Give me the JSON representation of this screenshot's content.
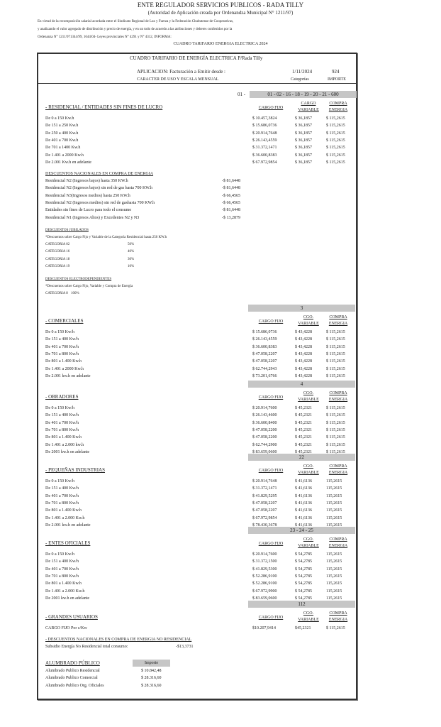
{
  "header": {
    "title": "ENTE REGULADOR SERVICIOS PUBLICOS - RADA TILLY",
    "subtitle": "(Autoridad de Aplicación creada por Ordenandza Municipal N° 1211/97)",
    "intro_lines": [
      "En virtud de la recomposición salarial acordada entre el Sindicato Regional de Luz y Fuerza y la Federación Chubutense de Cooperativas,",
      "y analizando el valor agregado de distribución y precio de energía, y en un todo de acuerdo a las atribuciones y deberes confenidos por la",
      "Ordenanza N° 1211/971344/99, 1644/04- Leyes provinciales N° 4291 y N° 4312, INFORMA:"
    ],
    "doc_title": "CUADRO TARIFARIO ENERGIA ELECTRICA 2024"
  },
  "table_head": {
    "title": "CUADRO TARIFARIO DE ENERGÍA ELECTRICA P/Rada Tilly",
    "aplicacion": "APLICACION:  Facturación  a  Emitir desde :",
    "fecha": "1/11/2024",
    "importe_code": "924",
    "caracter": "CARACTER DE USO Y ESCALA MENSUAL",
    "categorias": "Categorías",
    "importe": "IMPORTE",
    "prefix": "01 -"
  },
  "sections": [
    {
      "band": "01 - 02 - 16 - 18 - 19 - 20 - 21 - 600",
      "heading": "  - RESIDENCIAL / ENTIDADES SIN FINES DE LUCRO",
      "cols": [
        "CARGO FIJO",
        "CARGO",
        "VARIABLE",
        "COMPRA",
        "ENERGIA"
      ],
      "rows": [
        [
          "De 0 a 150 Kw.h",
          "$ 10.457,3824",
          "$ 36,1857",
          "$ 115,2615"
        ],
        [
          "De 151 a 250 Kw.h",
          "$ 15.686,0736",
          "$ 36,1857",
          "$ 115,2615"
        ],
        [
          "De 250 a 400 Kw.h",
          "$ 20.914,7648",
          "$ 36,1857",
          "$ 115,2615"
        ],
        [
          "De 401 a 700 Kw.h",
          "$ 26.143,4559",
          "$ 36,1857",
          "$ 115,2615"
        ],
        [
          "De 701 a 1400 Kw.h",
          "$ 31.372,1471",
          "$ 36,1857",
          "$ 115,2615"
        ],
        [
          "De 1.401 a 2000 Kw.h",
          "$ 36.600,8383",
          "$ 36,1857",
          "$ 115,2615"
        ],
        [
          "De 2.001 Kw.h   en adelante",
          "$ 67.972,9854",
          "$ 36,1857",
          "$ 115,2615"
        ]
      ]
    },
    {
      "band": "3",
      "heading": "  - COMERCIALES",
      "cols": [
        "CARGO FIJO",
        "CGO.",
        "VARIABLE",
        "COMPRA",
        "ENERGIA"
      ],
      "rows": [
        [
          "De 0 a 150 Kw/h",
          "$ 15.686,0736",
          "$ 43,4228",
          "$ 115,2615"
        ],
        [
          "De 151 a 400 Kw/h",
          "$ 26.143,4559",
          "$ 43,4228",
          "$ 115,2615"
        ],
        [
          "De 401 a 700 Kw/h",
          "$ 36.600,8383",
          "$ 43,4228",
          "$ 115,2615"
        ],
        [
          "De 701 a 800 Kw/h",
          "$ 47.058,2207",
          "$ 43,4228",
          "$ 115,2615"
        ],
        [
          "De 801 a 1.400 Kw.h",
          "$ 47.058,2207",
          "$ 43,4228",
          "$ 115,2615"
        ],
        [
          "De 1.401 a 2000 Kw.h",
          "$ 62.744,2943",
          "$ 43,4228",
          "$ 115,2615"
        ],
        [
          "De 2.001 kw.h en adelante",
          "$ 73.201,6766",
          "$ 43,4228",
          "$ 115,2615"
        ]
      ]
    },
    {
      "band": "4",
      "heading": "  - OBRADORES",
      "cols": [
        "CARGO FIJO",
        "CGO.",
        "VARIABLE",
        "COMPRA",
        "ENERGIA"
      ],
      "rows": [
        [
          "De 0 a 150 Kw/h",
          "$ 20.914,7600",
          "$ 45,2321",
          "$ 115,2615"
        ],
        [
          "De 151 a 400 Kw/h",
          "$ 26.143,4600",
          "$ 45,2321",
          "$ 115,2615"
        ],
        [
          "De 401 a 700 Kw/h",
          "$ 36.600,8400",
          "$ 45,2321",
          "$ 115,2615"
        ],
        [
          "De 701 a 800 Kw/h",
          "$ 47.058,2200",
          "$ 45,2321",
          "$ 115,2615"
        ],
        [
          "De 801 a 1.400 Kw.h",
          "$ 47.058,2200",
          "$ 45,2321",
          "$ 115,2615"
        ],
        [
          "De 1.401 a 2.000 kw.h",
          "$ 62.744,2900",
          "$ 45,2321",
          "$ 115,2615"
        ],
        [
          "De 2001 kw.h en adelante",
          "$ 83.659,0600",
          "$ 45,2321",
          "$ 115,2615"
        ]
      ]
    },
    {
      "band": "22",
      "heading": "  - PEQUEÑAS INDUSTRIAS",
      "cols": [
        "CARGO FIJO",
        "CGO.",
        "VARIABLE",
        "COMPRA",
        "ENERGIA"
      ],
      "rows": [
        [
          "De 0 a 150 Kw/h",
          "$ 20.914,7648",
          "$ 41,6136",
          "115,2615"
        ],
        [
          "De 151 a 400 Kw/h",
          "$ 31.372,1471",
          "$ 41,6136",
          "115,2615"
        ],
        [
          "De 401 a 700 Kw/h",
          "$ 41.829,5295",
          "$ 41,6136",
          "115,2615"
        ],
        [
          "De 701 a 800 Kw/h",
          "$ 47.058,2207",
          "$ 41,6136",
          "115,2615"
        ],
        [
          "De 801 a 1.400 Kw.h",
          "$ 47.058,2207",
          "$ 41,6136",
          "115,2615"
        ],
        [
          "De 1.401 a 2.000 Kw.h",
          "$ 67.972,9854",
          "$ 41,6136",
          "115,2615"
        ],
        [
          "De 2.001 kw.h en adelante",
          "$ 78.430,3678",
          "$ 41,6136",
          "115,2615"
        ]
      ]
    },
    {
      "band": "23 - 24 - 25",
      "heading": "  - ENTES OFICIALES",
      "cols": [
        "CARGO FIJO",
        "CGO.",
        "VARIABLE",
        "COMPRA",
        "ENERGIA"
      ],
      "rows": [
        [
          "De 0 a 150 Kw/h",
          "$ 20.914,7600",
          "$ 54,2785",
          "115,2615"
        ],
        [
          "De 151 a 400 Kw/h",
          "$ 31.372,1500",
          "$ 54,2785",
          "115,2615"
        ],
        [
          "De 401 a 700 Kw/h",
          "$ 41.829,5300",
          "$ 54,2785",
          "115,2615"
        ],
        [
          "De 701 a 800 Kw/h",
          "$ 52.286,9100",
          "$ 54,2785",
          "115,2615"
        ],
        [
          "De 801 a 1.400 Kw.h",
          "$ 52.286,9100",
          "$ 54,2785",
          "115,2615"
        ],
        [
          "De 1.401 a 2.000 Kw.h",
          "$ 67.972,9900",
          "$ 54,2785",
          "115,2615"
        ],
        [
          "De 2001 kw.h en adelante",
          "$ 83.659,0600",
          "$ 54,2785",
          "115,2615"
        ]
      ]
    },
    {
      "band": "112",
      "heading": "  - GRANDES USUARIOS",
      "cols": [
        "CARGO FIJO",
        "CGO.",
        "VARIABLE",
        "COMPRA",
        "ENERGIA"
      ],
      "rows": [
        [
          "CARGO FIJO Por c/Kw",
          "$10.207,9414",
          "$45,2321",
          "$ 115,2615"
        ]
      ]
    }
  ],
  "descuentos_nacionales": {
    "heading": "DESCUENTOS NACIONALES EN COMPRA DE ENERGIA",
    "rows": [
      [
        "Residencial N2 (Ingresos bajos) hasta 350 KW.h",
        "-$ 81,6448"
      ],
      [
        "Residencial N2 (Ingresos bajos) sin red de gas hasta 700 KW.h",
        "-$ 81,6448"
      ],
      [
        "Residencial N3(Ingresos medios) hasta 250 KW.h",
        "-$ 66,4565"
      ],
      [
        "Residencial N2 (Ingresos medios) sin red de gashasta 700 KW.h",
        "-$ 66,4565"
      ],
      [
        "Entidades sin fines de Lucro para todo el consumo",
        "-$ 81,6448"
      ],
      [
        "Residencial N1 (Ingresos Altos) y Excedentes N2 y N3",
        "-$ 13,2879"
      ]
    ]
  },
  "jubilados": {
    "heading": "DESCUENTOS JUBILADOS",
    "note": "*Descuentos sobre Cargo Fijo y Variable de la Categoría Residencial hasta 250 KW.h",
    "rows": [
      [
        "CATEGORIA 02",
        "50%"
      ],
      [
        "CATEGORIA 16",
        "40%"
      ],
      [
        "CATEGORIA 18",
        "30%"
      ],
      [
        "CATEGORIA 19",
        "10%"
      ]
    ]
  },
  "electrodependientes": {
    "heading": "DESCUENTOS ELECTRODEPENDIENTES",
    "note": "*Descuentos sobre Cargo Fijo, Variable y Compra de Energía",
    "rows": [
      [
        "CATEGORIA 8",
        "100%"
      ]
    ]
  },
  "no_residencial": {
    "heading": "- DESCUENTOS NACIONALES EN COMPRA DE ENERGIA NO RESIDENCIAL",
    "label": "Subsidio Energía No Residencial total consumo:",
    "value": "-$13,3731"
  },
  "alumbrado": {
    "heading": "ALUMBRADO PÚBLICO",
    "col": "Importe",
    "rows": [
      [
        "Alumbrado Publico Residencial",
        "$ 10.842,48"
      ],
      [
        "Alumbrado Publico Comercial",
        "$ 28.316,60"
      ],
      [
        "Alumbrado Publico Org. Oficiales",
        "$ 28.316,60"
      ]
    ]
  },
  "colors": {
    "band": "#c6c6c6",
    "border": "#333333",
    "text": "#222222"
  }
}
